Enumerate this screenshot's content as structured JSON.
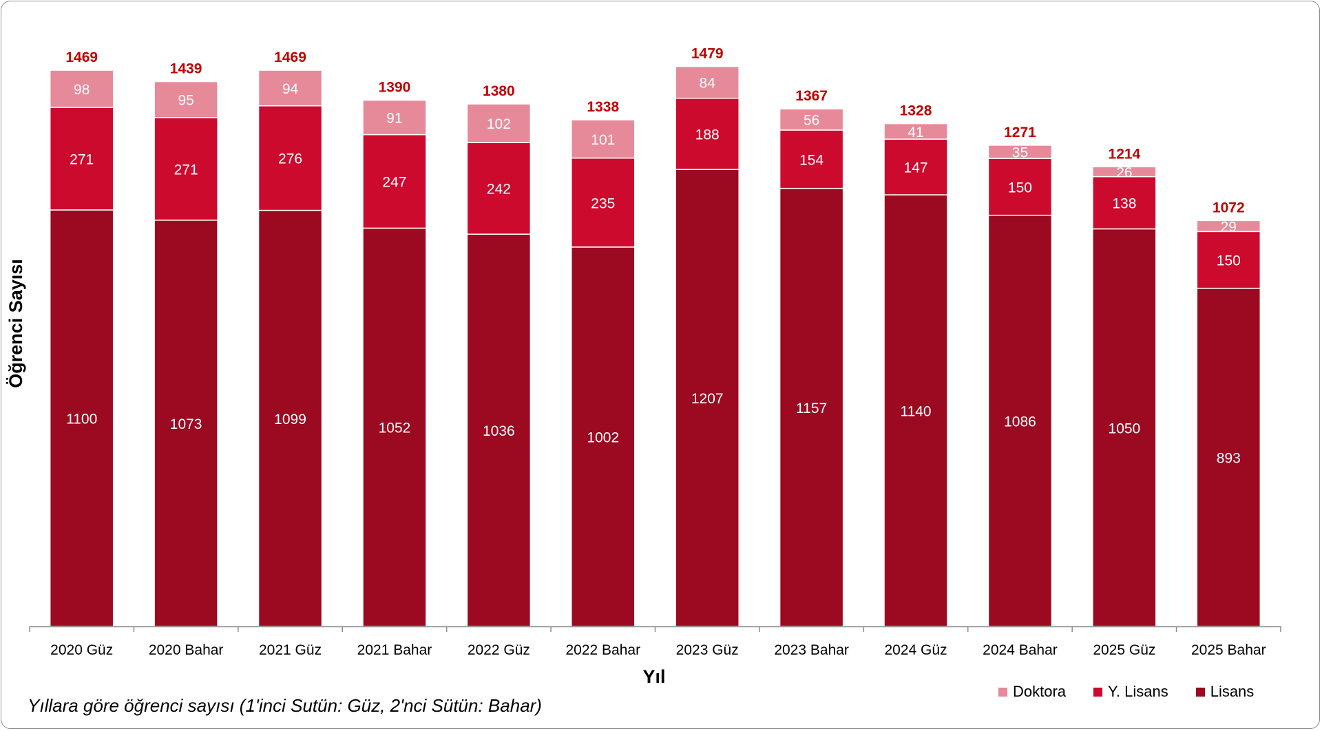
{
  "caption": "Yıllara göre öğrenci sayısı (1'inci Sutün: Güz, 2'nci Sütün: Bahar)",
  "chart_data": {
    "type": "bar",
    "stacked": true,
    "title": "",
    "xlabel": "Yıl",
    "ylabel": "Öğrenci Sayısı",
    "ylim": [
      0,
      1600
    ],
    "grid": false,
    "legend_position": "bottom-right",
    "categories": [
      "2020 Güz",
      "2020 Bahar",
      "2021 Güz",
      "2021 Bahar",
      "2022 Güz",
      "2022 Bahar",
      "2023 Güz",
      "2023 Bahar",
      "2024 Güz",
      "2024 Bahar",
      "2025 Güz",
      "2025 Bahar"
    ],
    "series": [
      {
        "name": "Lisans",
        "color": "#9b0a20",
        "values": [
          1100,
          1073,
          1099,
          1052,
          1036,
          1002,
          1207,
          1157,
          1140,
          1086,
          1050,
          893
        ]
      },
      {
        "name": "Y. Lisans",
        "color": "#cc0a2e",
        "values": [
          271,
          271,
          276,
          247,
          242,
          235,
          188,
          154,
          147,
          150,
          138,
          150
        ]
      },
      {
        "name": "Doktora",
        "color": "#e68a9a",
        "values": [
          98,
          95,
          94,
          91,
          102,
          101,
          84,
          56,
          41,
          35,
          26,
          29
        ]
      }
    ],
    "totals": [
      1469,
      1439,
      1469,
      1390,
      1380,
      1338,
      1479,
      1367,
      1328,
      1271,
      1214,
      1072
    ],
    "total_label_color": "#c00000",
    "legend_order": [
      "Doktora",
      "Y. Lisans",
      "Lisans"
    ]
  }
}
